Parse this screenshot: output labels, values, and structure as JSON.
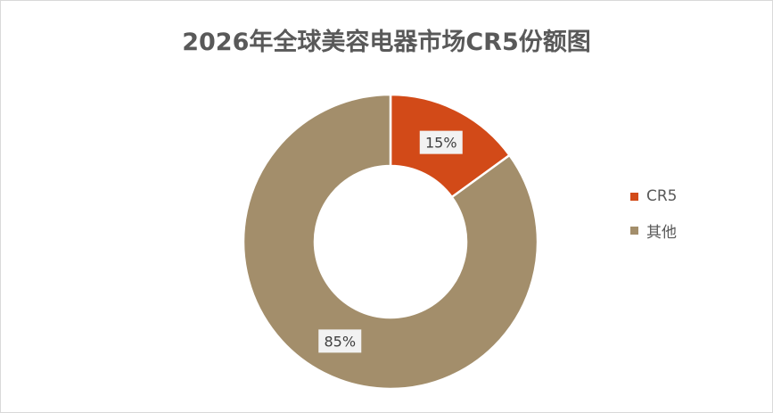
{
  "chart_data": {
    "type": "pie",
    "variant": "donut",
    "title": "2026年全球美容电器市场CR5份额图",
    "categories": [
      "CR5",
      "其他"
    ],
    "values": [
      15,
      85
    ],
    "data_labels": [
      "15%",
      "85%"
    ],
    "colors": [
      "#D24A18",
      "#A38E6B"
    ],
    "legend_position": "right"
  }
}
